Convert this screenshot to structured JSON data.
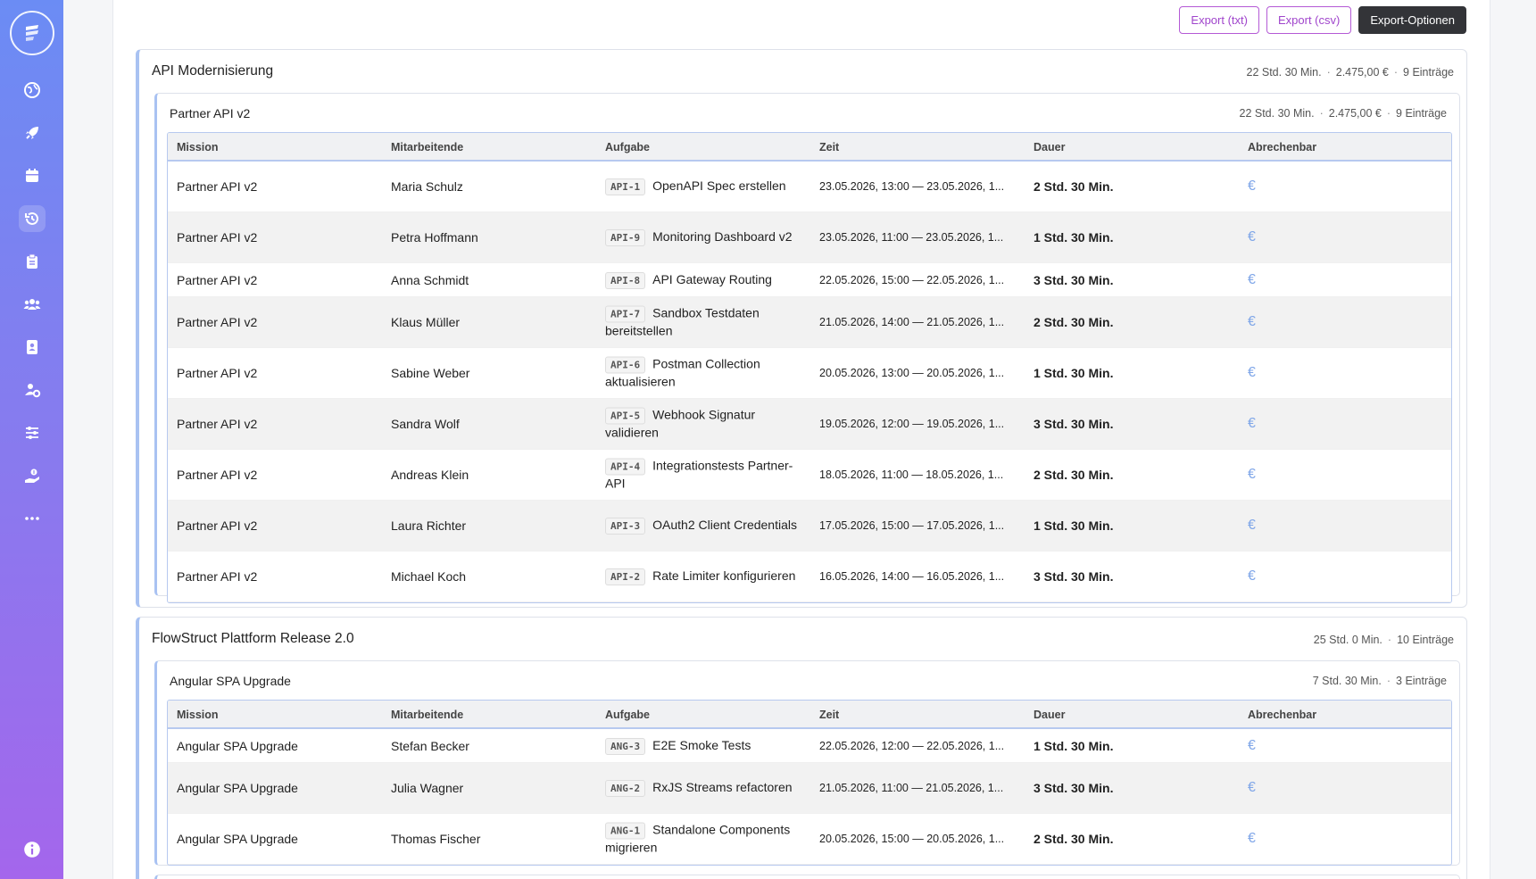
{
  "toolbar": {
    "export_txt": "Export (txt)",
    "export_csv": "Export (csv)",
    "export_options": "Export-Optionen"
  },
  "columns": [
    "Mission",
    "Mitarbeitende",
    "Aufgabe",
    "Zeit",
    "Dauer",
    "Abrechenbar"
  ],
  "projects": [
    {
      "title": "API Modernisierung",
      "duration": "22 Std. 30 Min.",
      "amount": "2.475,00 €",
      "entries": "9 Einträge",
      "subprojects": [
        {
          "title": "Partner API v2",
          "duration": "22 Std. 30 Min.",
          "amount": "2.475,00 €",
          "entries": "9 Einträge",
          "rows": [
            {
              "mission": "Partner API v2",
              "member": "Maria Schulz",
              "key": "API-1",
              "task": "OpenAPI Spec erstellen",
              "time": "23.05.2026, 13:00 — 23.05.2026, 1...",
              "duration": "2 Std. 30 Min."
            },
            {
              "mission": "Partner API v2",
              "member": "Petra Hoffmann",
              "key": "API-9",
              "task": "Monitoring Dashboard v2",
              "time": "23.05.2026, 11:00 — 23.05.2026, 1...",
              "duration": "1 Std. 30 Min."
            },
            {
              "mission": "Partner API v2",
              "member": "Anna Schmidt",
              "key": "API-8",
              "task": "API Gateway Routing",
              "time": "22.05.2026, 15:00 — 22.05.2026, 1...",
              "duration": "3 Std. 30 Min."
            },
            {
              "mission": "Partner API v2",
              "member": "Klaus Müller",
              "key": "API-7",
              "task": "Sandbox Testdaten bereitstellen",
              "time": "21.05.2026, 14:00 — 21.05.2026, 1...",
              "duration": "2 Std. 30 Min."
            },
            {
              "mission": "Partner API v2",
              "member": "Sabine Weber",
              "key": "API-6",
              "task": "Postman Collection aktualisieren",
              "time": "20.05.2026, 13:00 — 20.05.2026, 1...",
              "duration": "1 Std. 30 Min."
            },
            {
              "mission": "Partner API v2",
              "member": "Sandra Wolf",
              "key": "API-5",
              "task": "Webhook Signatur validieren",
              "time": "19.05.2026, 12:00 — 19.05.2026, 1...",
              "duration": "3 Std. 30 Min."
            },
            {
              "mission": "Partner API v2",
              "member": "Andreas Klein",
              "key": "API-4",
              "task": "Integrationstests Partner-API",
              "time": "18.05.2026, 11:00 — 18.05.2026, 1...",
              "duration": "2 Std. 30 Min."
            },
            {
              "mission": "Partner API v2",
              "member": "Laura Richter",
              "key": "API-3",
              "task": "OAuth2 Client Credentials",
              "time": "17.05.2026, 15:00 — 17.05.2026, 1...",
              "duration": "1 Std. 30 Min."
            },
            {
              "mission": "Partner API v2",
              "member": "Michael Koch",
              "key": "API-2",
              "task": "Rate Limiter konfigurieren",
              "time": "16.05.2026, 14:00 — 16.05.2026, 1...",
              "duration": "3 Std. 30 Min."
            }
          ]
        }
      ]
    },
    {
      "title": "FlowStruct Plattform Release 2.0",
      "duration": "25 Std. 0 Min.",
      "entries": "10 Einträge",
      "subprojects": [
        {
          "title": "Angular SPA Upgrade",
          "duration": "7 Std. 30 Min.",
          "entries": "3 Einträge",
          "rows": [
            {
              "mission": "Angular SPA Upgrade",
              "member": "Stefan Becker",
              "key": "ANG-3",
              "task": "E2E Smoke Tests",
              "time": "22.05.2026, 12:00 — 22.05.2026, 1...",
              "duration": "1 Std. 30 Min."
            },
            {
              "mission": "Angular SPA Upgrade",
              "member": "Julia Wagner",
              "key": "ANG-2",
              "task": "RxJS Streams refactoren",
              "time": "21.05.2026, 11:00 — 21.05.2026, 1...",
              "duration": "3 Std. 30 Min."
            },
            {
              "mission": "Angular SPA Upgrade",
              "member": "Thomas Fischer",
              "key": "ANG-1",
              "task": "Standalone Components migrieren",
              "time": "20.05.2026, 15:00 — 20.05.2026, 1...",
              "duration": "2 Std. 30 Min."
            }
          ]
        }
      ]
    }
  ],
  "billable_symbol": "€",
  "colors": {
    "accent": "#a045cc",
    "table_border": "#b7c9ef",
    "billable_icon": "#7fa6e8",
    "sidebar_top": "#6b8cf4",
    "sidebar_bottom": "#a466ec"
  },
  "sidebar_icons": [
    "globe-icon",
    "rocket-icon",
    "calendar-icon",
    "history-icon",
    "clipboard-icon",
    "team-icon",
    "contact-book-icon",
    "user-group-settings-icon",
    "sliders-icon",
    "hand-money-icon",
    "more-icon"
  ]
}
